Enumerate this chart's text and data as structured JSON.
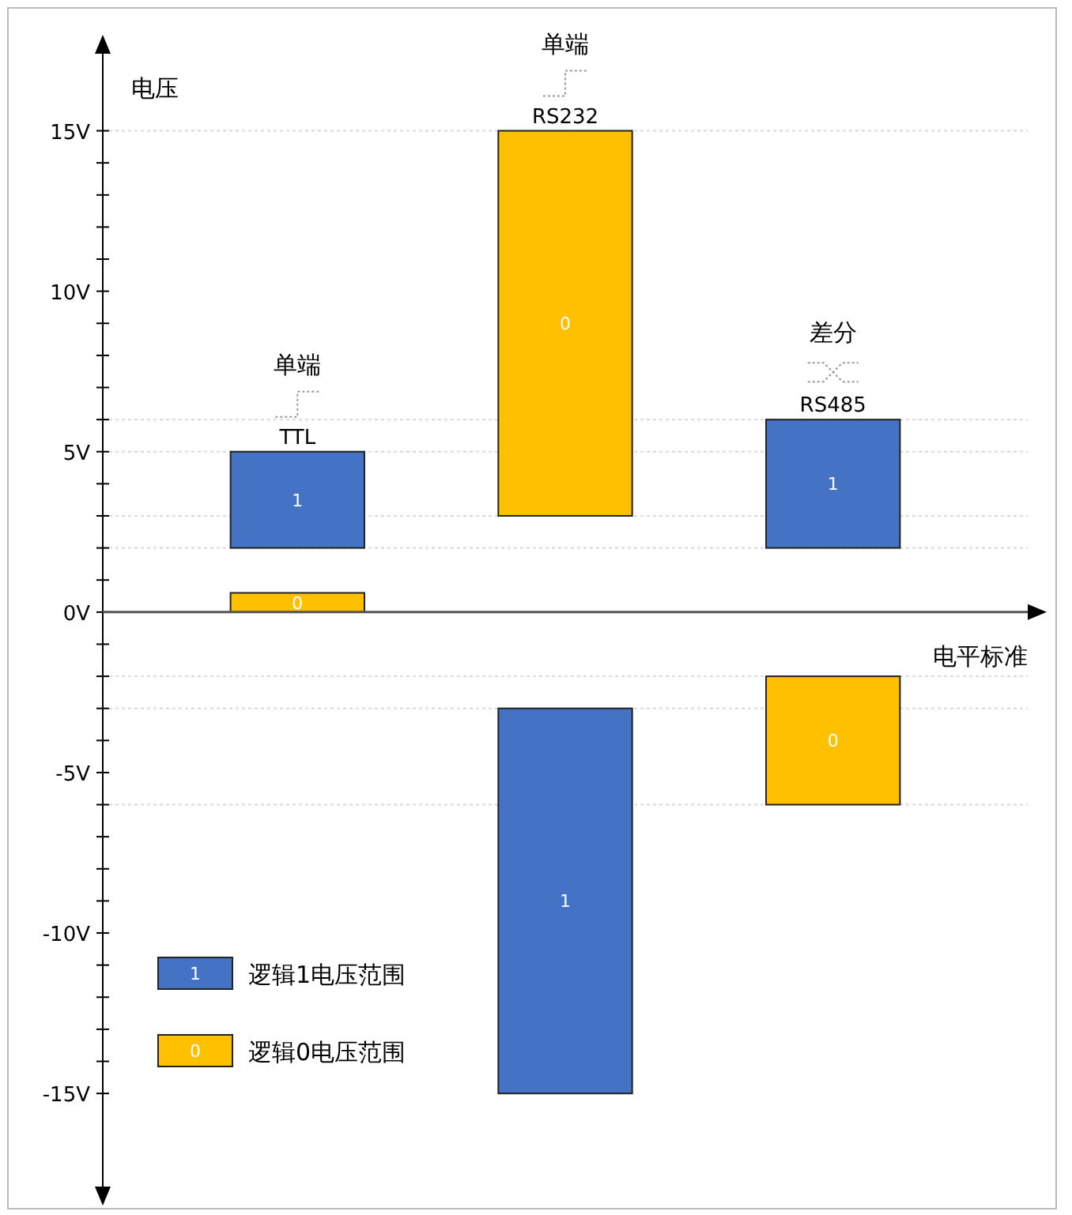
{
  "chart_data": {
    "type": "bar",
    "xlabel": "电平标准",
    "ylabel": "电压",
    "categories": [
      "TTL",
      "RS232",
      "RS485"
    ],
    "series": [
      {
        "name": "逻辑1电压范围",
        "color": "#4472c4",
        "values": [
          3,
          -12,
          4
        ],
        "base": [
          2,
          -3,
          2
        ]
      },
      {
        "name": "逻辑0电压范围",
        "color": "#ffc000",
        "values": [
          0.6,
          12,
          -4
        ],
        "base": [
          0,
          3,
          -2
        ]
      }
    ],
    "ylim": [
      -18,
      17.5
    ],
    "yticks": [
      {
        "value": -15,
        "label": "-15V"
      },
      {
        "value": -14,
        "label": null
      },
      {
        "value": -13,
        "label": null
      },
      {
        "value": -12,
        "label": null
      },
      {
        "value": -11,
        "label": null
      },
      {
        "value": -10,
        "label": "-10V"
      },
      {
        "value": -9,
        "label": null
      },
      {
        "value": -8,
        "label": null
      },
      {
        "value": -7,
        "label": null
      },
      {
        "value": -6,
        "label": null
      },
      {
        "value": -5,
        "label": "-5V"
      },
      {
        "value": -4,
        "label": null
      },
      {
        "value": -3,
        "label": null
      },
      {
        "value": -2,
        "label": null
      },
      {
        "value": -1,
        "label": null
      },
      {
        "value": 0,
        "label": "0V"
      },
      {
        "value": 1,
        "label": null
      },
      {
        "value": 2,
        "label": null
      },
      {
        "value": 3,
        "label": null
      },
      {
        "value": 4,
        "label": null
      },
      {
        "value": 5,
        "label": "5V"
      },
      {
        "value": 6,
        "label": null
      },
      {
        "value": 7,
        "label": null
      },
      {
        "value": 8,
        "label": null
      },
      {
        "value": 9,
        "label": null
      },
      {
        "value": 10,
        "label": "10V"
      },
      {
        "value": 11,
        "label": null
      },
      {
        "value": 12,
        "label": null
      },
      {
        "value": 13,
        "label": null
      },
      {
        "value": 14,
        "label": null
      },
      {
        "value": 15,
        "label": "15V"
      }
    ],
    "ref_lines": [
      {
        "axis": "y",
        "value": 15,
        "color": "#d9d9d9",
        "line_style": "dotted"
      },
      {
        "axis": "y",
        "value": 6,
        "color": "#d9d9d9",
        "line_style": "dotted"
      },
      {
        "axis": "y",
        "value": 5,
        "color": "#d9d9d9",
        "line_style": "dotted"
      },
      {
        "axis": "y",
        "value": 3,
        "color": "#d9d9d9",
        "line_style": "dotted"
      },
      {
        "axis": "y",
        "value": 2,
        "color": "#d9d9d9",
        "line_style": "dotted"
      },
      {
        "axis": "y",
        "value": -2,
        "color": "#d9d9d9",
        "line_style": "dotted"
      },
      {
        "axis": "y",
        "value": -3,
        "color": "#d9d9d9",
        "line_style": "dotted"
      },
      {
        "axis": "y",
        "value": -6,
        "color": "#d9d9d9",
        "line_style": "dotted"
      }
    ],
    "annotations": [
      "单端",
      "单端",
      "差分",
      "1",
      "1",
      "1",
      "0",
      "0",
      "0"
    ],
    "legend": "bottom left",
    "tick_labels": "y"
  }
}
